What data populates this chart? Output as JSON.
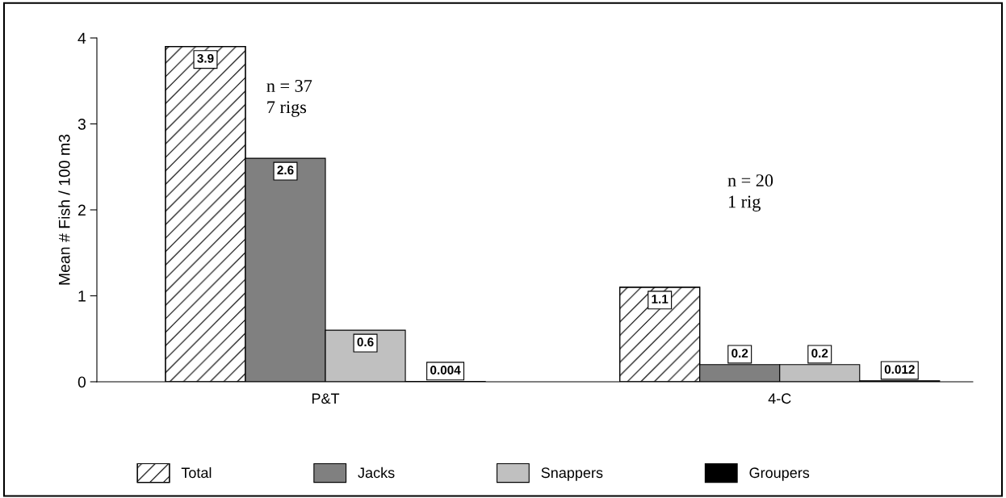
{
  "chart_data": {
    "type": "bar",
    "ylabel": "Mean # Fish / 100 m3",
    "categories": [
      "P&T",
      "4-C"
    ],
    "series": [
      {
        "name": "Total",
        "color": "#ffffff",
        "values": [
          3.9,
          1.1
        ]
      },
      {
        "name": "Jacks",
        "color": "#808080",
        "values": [
          2.6,
          0.2
        ]
      },
      {
        "name": "Snappers",
        "color": "#c0c0c0",
        "values": [
          0.6,
          0.2
        ]
      },
      {
        "name": "Groupers",
        "color": "#000000",
        "values": [
          0.004,
          0.012
        ]
      }
    ],
    "ylim": [
      0,
      4
    ],
    "yticks": [
      0,
      1,
      2,
      3,
      4
    ],
    "data_labels": true,
    "grid": false,
    "legend": "bottom",
    "annotations": [
      "n = 37\n7 rigs",
      "n = 20\n1 rig"
    ]
  }
}
